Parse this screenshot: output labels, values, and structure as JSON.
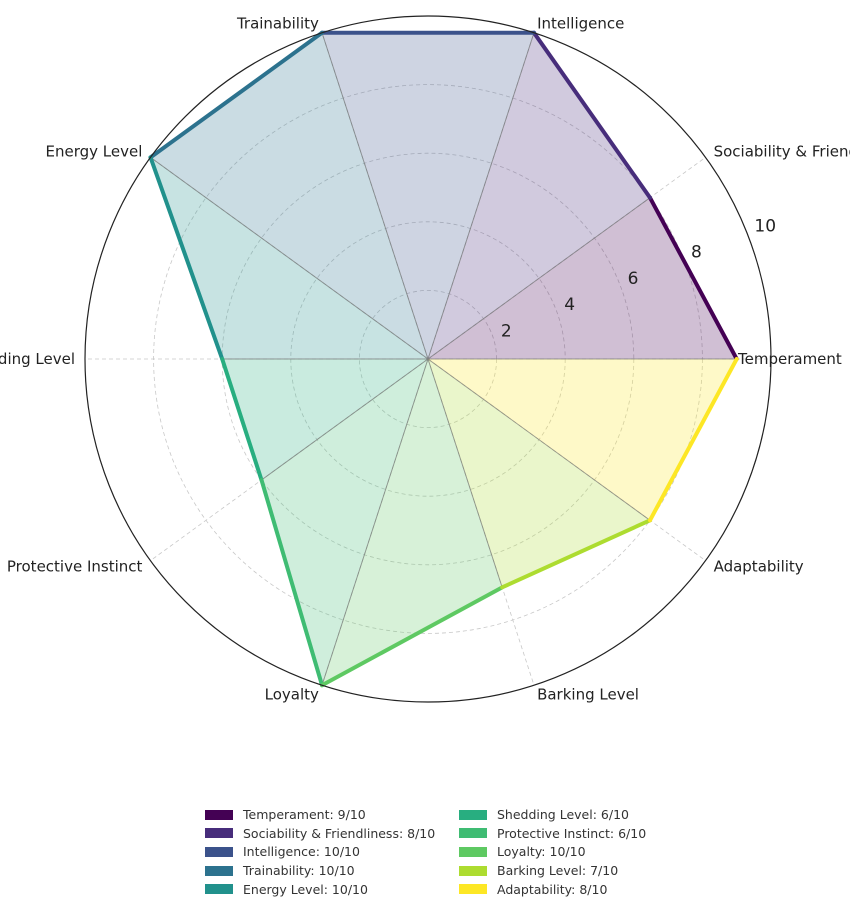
{
  "chart_data": {
    "type": "radar",
    "rmax": 10,
    "radial_ticks": [
      2,
      4,
      6,
      8,
      10
    ],
    "grid": true,
    "legend_placement": "bottom",
    "categories": [
      {
        "name": "Temperament",
        "value": 9,
        "color": "#440154",
        "legend": "Temperament: 9/10"
      },
      {
        "name": "Sociability & Friendliness",
        "value": 8,
        "color": "#472d7b",
        "legend": "Sociability & Friendliness: 8/10"
      },
      {
        "name": "Intelligence",
        "value": 10,
        "color": "#3b528b",
        "legend": "Intelligence: 10/10"
      },
      {
        "name": "Trainability",
        "value": 10,
        "color": "#2c728e",
        "legend": "Trainability: 10/10"
      },
      {
        "name": "Energy Level",
        "value": 10,
        "color": "#21918c",
        "legend": "Energy Level: 10/10"
      },
      {
        "name": "Shedding Level",
        "value": 6,
        "color": "#28ae80",
        "legend": "Shedding Level: 6/10"
      },
      {
        "name": "Protective Instinct",
        "value": 6,
        "color": "#3fbc73",
        "legend": "Protective Instinct: 6/10"
      },
      {
        "name": "Loyalty",
        "value": 10,
        "color": "#5ec962",
        "legend": "Loyalty: 10/10"
      },
      {
        "name": "Barking Level",
        "value": 7,
        "color": "#addc30",
        "legend": "Barking Level: 7/10"
      },
      {
        "name": "Adaptability",
        "value": 8,
        "color": "#fde725",
        "legend": "Adaptability: 8/10"
      }
    ]
  }
}
